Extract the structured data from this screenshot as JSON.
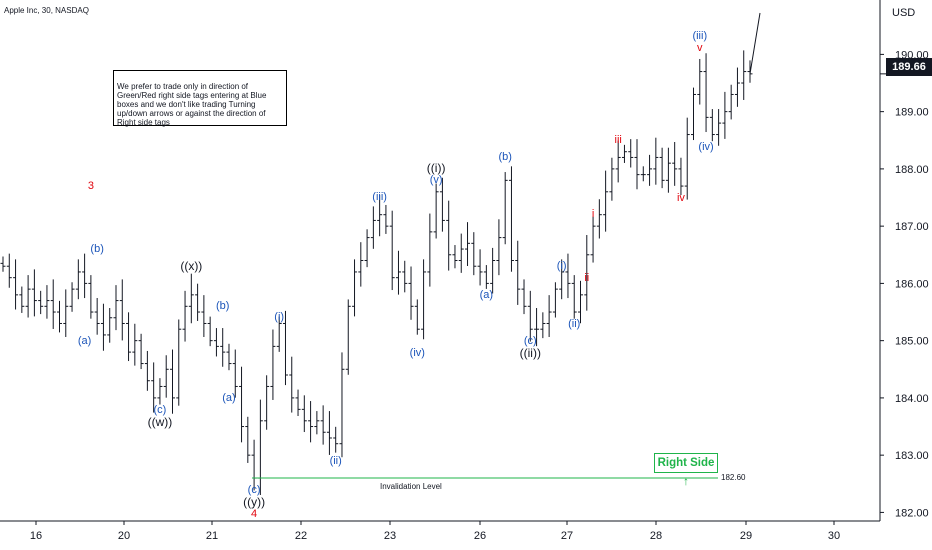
{
  "header": {
    "title": "Apple Inc, 30, NASDAQ"
  },
  "note": "We prefer to trade only in direction of Green/Red right side tags entering at Blue boxes and we don't like trading Turning up/down arrows or against the direction of Right side tags",
  "right_side_tag": {
    "label": "Right Side",
    "arrow": "↑",
    "color": "#1fb44a"
  },
  "price_axis": {
    "currency": "USD",
    "last_price": "189.66"
  },
  "invalidation": {
    "label": "Invalidation Level",
    "price_label": "182.60",
    "value": 182.6,
    "color": "#1fb44a"
  },
  "chart_data": {
    "type": "ohlc",
    "symbol": "Apple Inc",
    "interval": "30",
    "exchange": "NASDAQ",
    "ylim": [
      181.85,
      190.95
    ],
    "y_ticks": [
      182,
      183,
      184,
      185,
      186,
      187,
      188,
      189,
      190
    ],
    "x_ticks": [
      "16",
      "20",
      "21",
      "22",
      "23",
      "26",
      "27",
      "28",
      "29",
      "30"
    ],
    "closes": [
      186.3,
      186.1,
      185.8,
      185.6,
      185.9,
      185.7,
      185.6,
      185.7,
      185.5,
      185.3,
      185.6,
      185.9,
      186.2,
      186.0,
      185.5,
      185.3,
      185.1,
      185.4,
      185.7,
      185.3,
      184.8,
      185.0,
      184.6,
      184.3,
      184.0,
      184.2,
      184.5,
      184.0,
      185.2,
      185.6,
      185.8,
      185.5,
      185.3,
      185.0,
      184.9,
      184.8,
      184.6,
      184.2,
      183.5,
      183.0,
      182.6,
      183.6,
      184.2,
      184.9,
      185.3,
      184.4,
      184.0,
      183.8,
      183.6,
      183.5,
      183.6,
      183.4,
      183.3,
      183.2,
      184.5,
      185.6,
      186.2,
      186.4,
      186.8,
      187.1,
      187.2,
      187.0,
      186.1,
      186.2,
      186.0,
      185.6,
      185.2,
      186.2,
      186.9,
      187.6,
      187.1,
      186.5,
      186.4,
      186.6,
      186.7,
      186.3,
      186.2,
      186.0,
      186.4,
      186.8,
      187.8,
      186.4,
      185.9,
      185.6,
      185.2,
      185.2,
      185.3,
      185.5,
      185.9,
      186.2,
      186.0,
      185.5,
      185.8,
      186.5,
      187.0,
      187.2,
      187.6,
      188.0,
      188.2,
      188.3,
      188.2,
      187.9,
      187.9,
      188.0,
      188.2,
      187.8,
      188.1,
      188.0,
      187.7,
      188.6,
      189.3,
      189.7,
      188.9,
      188.6,
      188.8,
      189.0,
      189.3,
      189.5,
      189.7,
      189.66
    ],
    "elliott_labels": [
      {
        "text": "3",
        "at": 14,
        "price": 187.5,
        "pos": "above",
        "color": "#e1060f"
      },
      {
        "text": "(a)",
        "at": 13,
        "price": 185.2,
        "pos": "below",
        "color": "#1c55b9"
      },
      {
        "text": "(b)",
        "at": 15,
        "price": 186.4,
        "pos": "above",
        "color": "#1c55b9"
      },
      {
        "text": "(c)",
        "at": 25,
        "price": 184.0,
        "pos": "below",
        "color": "#1c55b9"
      },
      {
        "text": "((w))",
        "at": 25,
        "price": 184.0,
        "pos": "below2",
        "color": "#131722"
      },
      {
        "text": "((x))",
        "at": 30,
        "price": 186.1,
        "pos": "above",
        "color": "#131722"
      },
      {
        "text": "(b)",
        "at": 35,
        "price": 185.4,
        "pos": "above",
        "color": "#1c55b9"
      },
      {
        "text": "(a)",
        "at": 36,
        "price": 184.2,
        "pos": "below",
        "color": "#1c55b9"
      },
      {
        "text": "(i)",
        "at": 44,
        "price": 185.2,
        "pos": "above",
        "color": "#1c55b9"
      },
      {
        "text": "(c)",
        "at": 40,
        "price": 182.6,
        "pos": "below",
        "color": "#1c55b9"
      },
      {
        "text": "((y))",
        "at": 40,
        "price": 182.6,
        "pos": "below2",
        "color": "#131722"
      },
      {
        "text": "4",
        "at": 40,
        "price": 182.6,
        "pos": "below3",
        "color": "#e1060f"
      },
      {
        "text": "(ii)",
        "at": 53,
        "price": 183.1,
        "pos": "below",
        "color": "#1c55b9"
      },
      {
        "text": "(iii)",
        "at": 60,
        "price": 187.3,
        "pos": "above",
        "color": "#1c55b9"
      },
      {
        "text": "(iv)",
        "at": 66,
        "price": 185.0,
        "pos": "below",
        "color": "#1c55b9"
      },
      {
        "text": "(v)",
        "at": 69,
        "price": 187.6,
        "pos": "above",
        "color": "#1c55b9"
      },
      {
        "text": "((i))",
        "at": 69,
        "price": 187.6,
        "pos": "above2",
        "color": "#131722"
      },
      {
        "text": "(a)",
        "at": 77,
        "price": 186.0,
        "pos": "below",
        "color": "#1c55b9"
      },
      {
        "text": "(b)",
        "at": 80,
        "price": 188.0,
        "pos": "above",
        "color": "#1c55b9"
      },
      {
        "text": "(c)",
        "at": 84,
        "price": 185.2,
        "pos": "below",
        "color": "#1c55b9"
      },
      {
        "text": "((ii))",
        "at": 84,
        "price": 185.2,
        "pos": "below2",
        "color": "#131722"
      },
      {
        "text": "(i)",
        "at": 89,
        "price": 186.1,
        "pos": "above",
        "color": "#1c55b9"
      },
      {
        "text": "(ii)",
        "at": 91,
        "price": 185.5,
        "pos": "below",
        "color": "#1c55b9"
      },
      {
        "text": "i",
        "at": 94,
        "price": 187.0,
        "pos": "above",
        "color": "#e1060f"
      },
      {
        "text": "ii",
        "at": 93,
        "price": 186.3,
        "pos": "below",
        "color": "#e1060f"
      },
      {
        "text": "iii",
        "at": 98,
        "price": 188.3,
        "pos": "above",
        "color": "#e1060f"
      },
      {
        "text": "iv",
        "at": 108,
        "price": 187.7,
        "pos": "below",
        "color": "#e1060f"
      },
      {
        "text": "v",
        "at": 111,
        "price": 189.9,
        "pos": "above",
        "color": "#e1060f"
      },
      {
        "text": "(iii)",
        "at": 111,
        "price": 189.9,
        "pos": "above2",
        "color": "#1c55b9"
      },
      {
        "text": "(iv)",
        "at": 112,
        "price": 188.6,
        "pos": "below",
        "color": "#1c55b9"
      }
    ]
  }
}
